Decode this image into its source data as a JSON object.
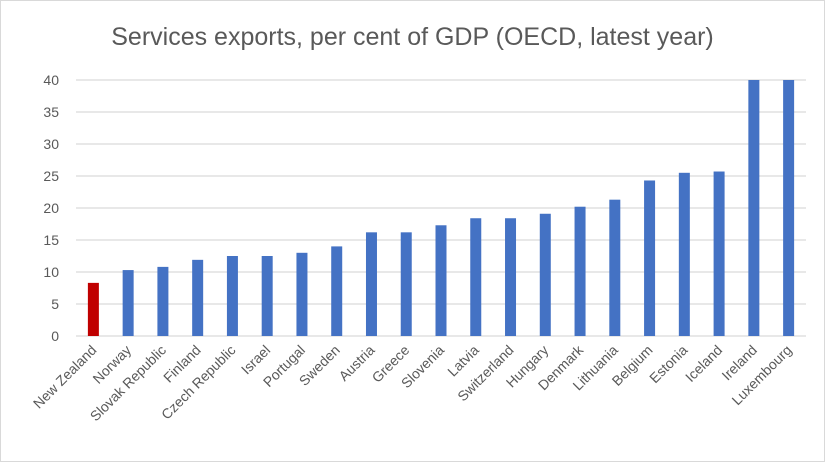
{
  "chart_data": {
    "type": "bar",
    "title": "Services exports, per cent of GDP (OECD, latest year)",
    "xlabel": "",
    "ylabel": "",
    "ylim": [
      0,
      40
    ],
    "yticks": [
      0,
      5,
      10,
      15,
      20,
      25,
      30,
      35,
      40
    ],
    "grid": true,
    "categories": [
      "New Zealand",
      "Norway",
      "Slovak Republic",
      "Finland",
      "Czech Republic",
      "Israel",
      "Portugal",
      "Sweden",
      "Austria",
      "Greece",
      "Slovenia",
      "Latvia",
      "Switzerland",
      "Hungary",
      "Denmark",
      "Lithuania",
      "Belgium",
      "Estonia",
      "Iceland",
      "Ireland",
      "Luxembourg"
    ],
    "values": [
      8.3,
      10.3,
      10.8,
      11.9,
      12.5,
      12.5,
      13.0,
      14.0,
      16.2,
      16.2,
      17.3,
      18.4,
      18.4,
      19.1,
      20.2,
      21.3,
      24.3,
      25.5,
      25.7,
      40,
      40
    ],
    "highlight_category": "New Zealand",
    "colors": {
      "default": "#4472C4",
      "highlight": "#C00000",
      "grid": "#D9D9D9"
    }
  }
}
